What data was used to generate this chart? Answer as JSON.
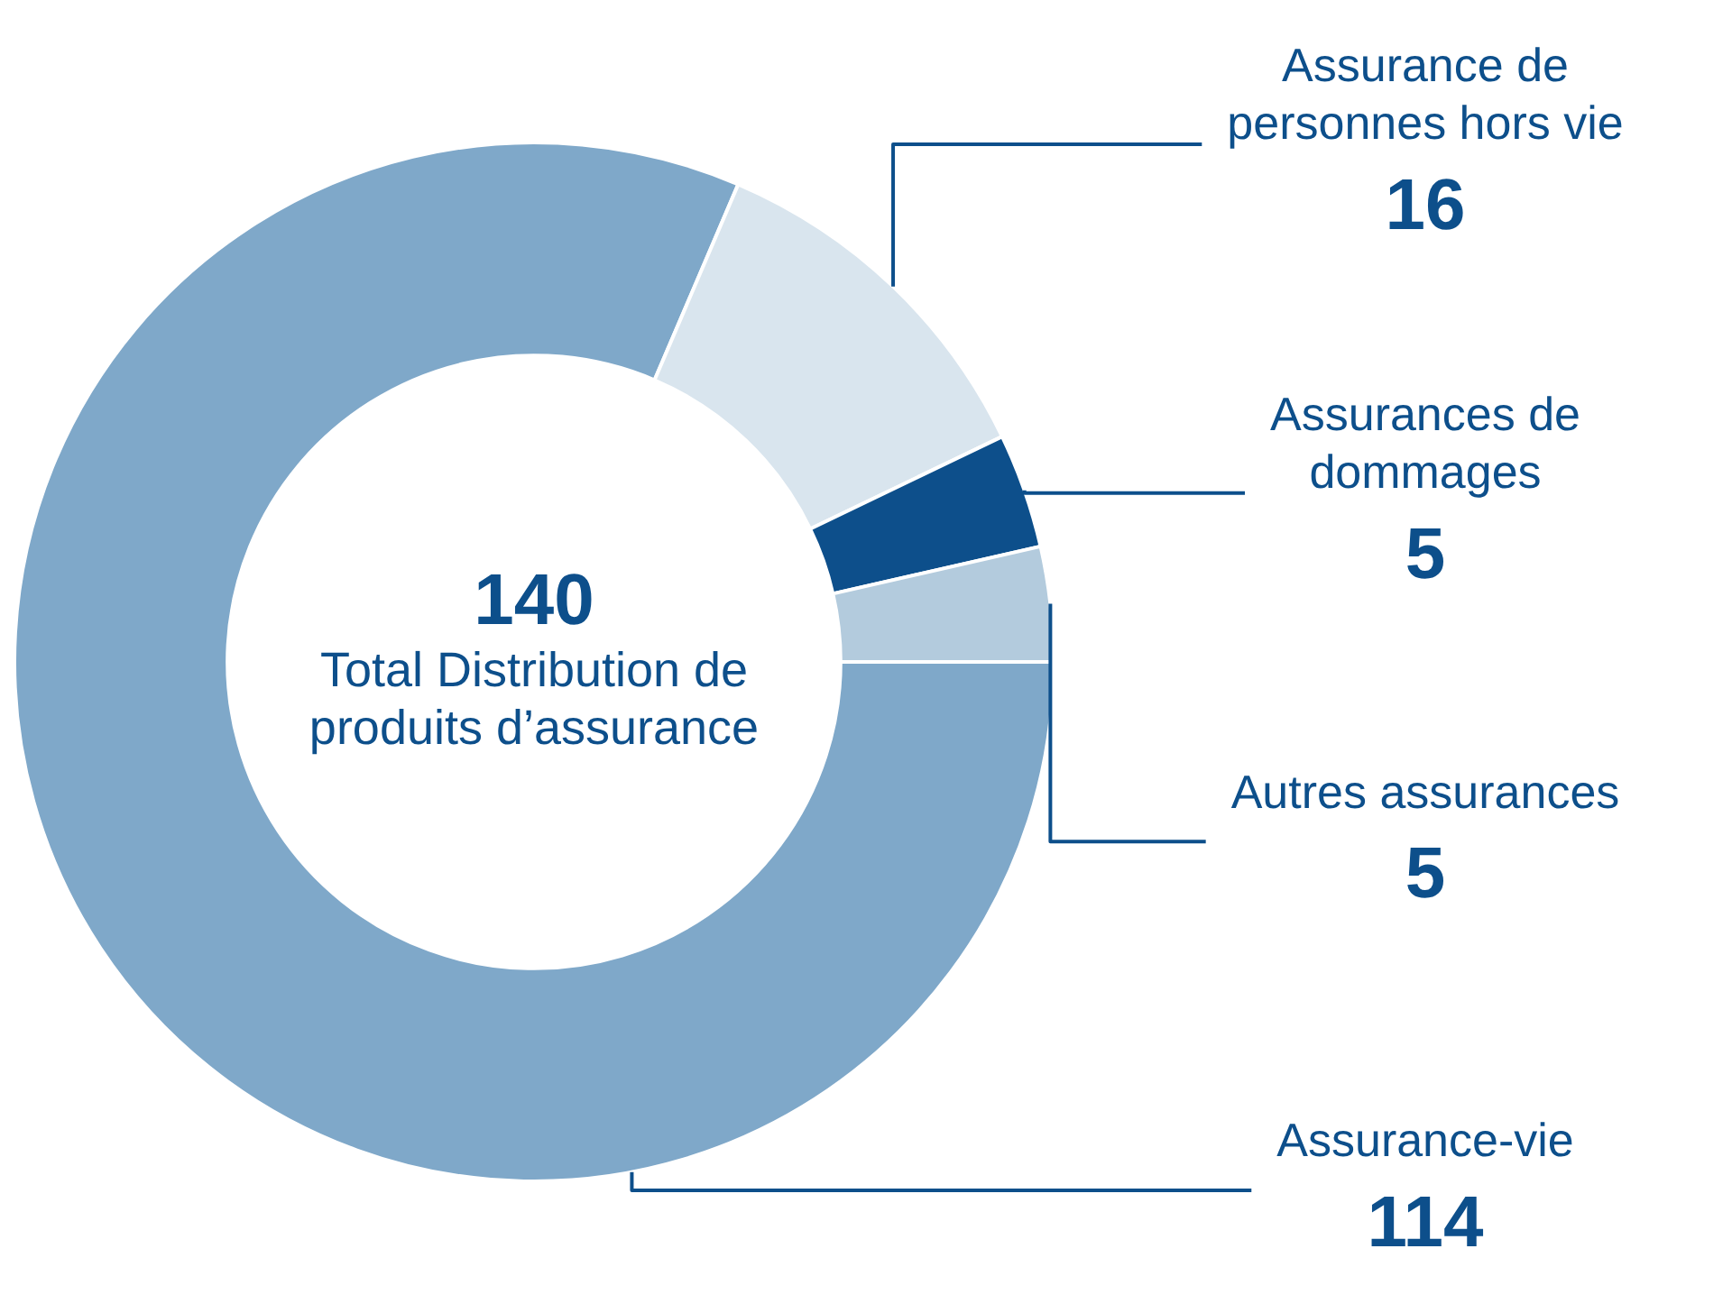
{
  "chart_data": {
    "type": "donut",
    "categories": [
      "Assurance-vie",
      "Assurance de personnes hors vie",
      "Assurances de dommages",
      "Autres assurances"
    ],
    "values": [
      114,
      16,
      5,
      5
    ],
    "colors": [
      "#7fa8c9",
      "#d9e5ee",
      "#0d4f8b",
      "#b3cbdd"
    ],
    "data_labels": true,
    "annotations": [
      "140",
      "Total Distribution de produits d’assurance"
    ]
  }
}
